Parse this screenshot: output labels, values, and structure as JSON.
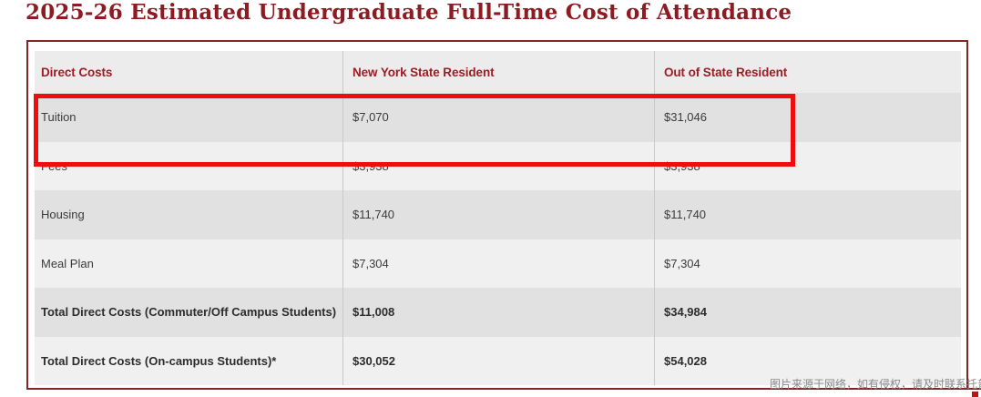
{
  "page_title": "2025-26 Estimated Undergraduate Full-Time Cost of Attendance",
  "table": {
    "columns": [
      "Direct Costs",
      "New York State Resident",
      "Out of State Resident"
    ],
    "rows": [
      {
        "label": "Tuition",
        "ny_resident": "$7,070",
        "out_of_state": "$31,046",
        "bold": false,
        "highlighted": true
      },
      {
        "label": "Fees",
        "ny_resident": "$3,938",
        "out_of_state": "$3,938",
        "bold": false,
        "highlighted": false
      },
      {
        "label": "Housing",
        "ny_resident": "$11,740",
        "out_of_state": "$11,740",
        "bold": false,
        "highlighted": false
      },
      {
        "label": "Meal Plan",
        "ny_resident": "$7,304",
        "out_of_state": "$7,304",
        "bold": false,
        "highlighted": false
      },
      {
        "label": "Total Direct Costs (Commuter/Off Campus Students)",
        "ny_resident": "$11,008",
        "out_of_state": "$34,984",
        "bold": true,
        "highlighted": false
      },
      {
        "label": "Total Direct Costs (On-campus Students)*",
        "ny_resident": "$30,052",
        "out_of_state": "$54,028",
        "bold": true,
        "highlighted": false
      }
    ]
  },
  "annotation": {
    "type": "highlight-box",
    "target_row": "Tuition",
    "color": "#ef0d0d"
  },
  "watermark_text": "图片来源于网络，如有侵权，请及时联系托普仕留学删除",
  "colors": {
    "title_text": "#8c1b22",
    "header_text": "#9e1c24",
    "table_border": "#812629",
    "header_bg": "#ececec",
    "row_dark_bg": "#e1e1e1",
    "row_light_bg": "#f0f0f0",
    "highlight_red": "#ef0d0d",
    "body_text": "#3b3b3b",
    "watermark_text_color": "#8a8a8a"
  }
}
